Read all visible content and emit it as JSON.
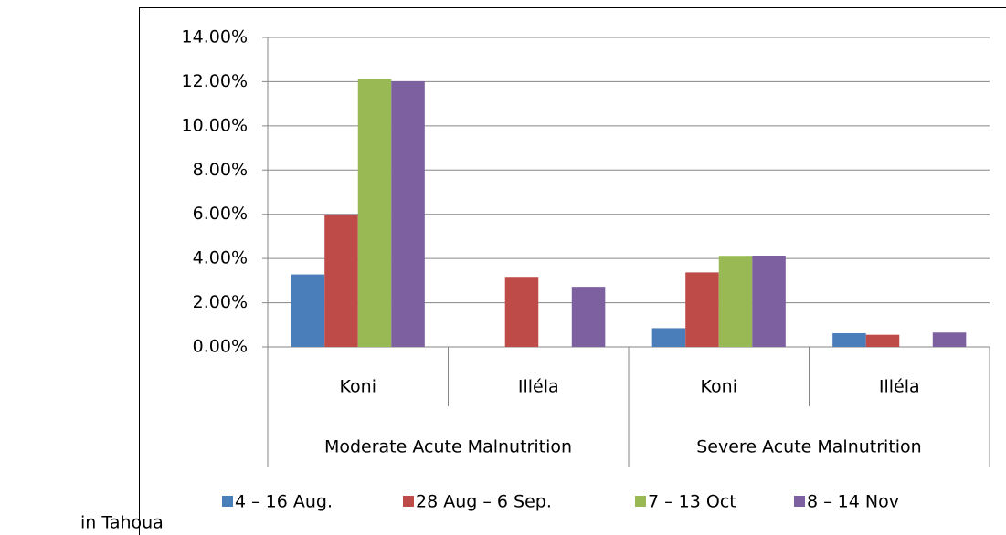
{
  "chart_data": {
    "type": "bar",
    "annotation": "in Tahoua",
    "categories": [
      "Koni",
      "Illéla",
      "Koni",
      "Illéla"
    ],
    "outer_categories": [
      "Moderate Acute Malnutrition",
      "Severe Acute Malnutrition"
    ],
    "series": [
      {
        "name": "4 – 16 Aug.",
        "color": "#4a7ebb",
        "values": [
          3.28,
          null,
          0.85,
          0.62
        ]
      },
      {
        "name": "28 Aug – 6 Sep.",
        "color": "#be4b48",
        "values": [
          5.95,
          3.17,
          3.37,
          0.55
        ]
      },
      {
        "name": "7 – 13 Oct",
        "color": "#98b954",
        "values": [
          12.12,
          null,
          4.12,
          null
        ]
      },
      {
        "name": "8 – 14 Nov",
        "color": "#7d60a0",
        "values": [
          12.02,
          2.72,
          4.13,
          0.65
        ]
      }
    ],
    "ylim": [
      0,
      14
    ],
    "yticks": [
      {
        "value": 0,
        "label": "0.00%"
      },
      {
        "value": 2,
        "label": "2.00%"
      },
      {
        "value": 4,
        "label": "4.00%"
      },
      {
        "value": 6,
        "label": "6.00%"
      },
      {
        "value": 8,
        "label": "8.00%"
      },
      {
        "value": 10,
        "label": "10.00%"
      },
      {
        "value": 12,
        "label": "12.00%"
      },
      {
        "value": 14,
        "label": "14.00%"
      }
    ],
    "grid": true,
    "legend": "bottom"
  }
}
